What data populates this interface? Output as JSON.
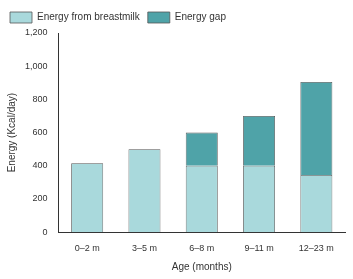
{
  "chart_data": {
    "type": "bar",
    "stacked": true,
    "categories": [
      "0–2 m",
      "3–5 m",
      "6–8 m",
      "9–11 m",
      "12–23 m"
    ],
    "series": [
      {
        "name": "Energy from breastmilk",
        "color": "#a9d9dc",
        "values": [
          415,
          500,
          400,
          400,
          345
        ]
      },
      {
        "name": "Energy gap",
        "color": "#4fa3a8",
        "values": [
          null,
          null,
          200,
          300,
          560
        ]
      }
    ],
    "x_label": "Age (months)",
    "y_label": "Energy (Kcal/day)",
    "ylim": [
      0,
      1200
    ],
    "yticks": [
      0,
      200,
      400,
      600,
      800,
      1000,
      1200
    ],
    "grid": false,
    "legend": "top"
  }
}
